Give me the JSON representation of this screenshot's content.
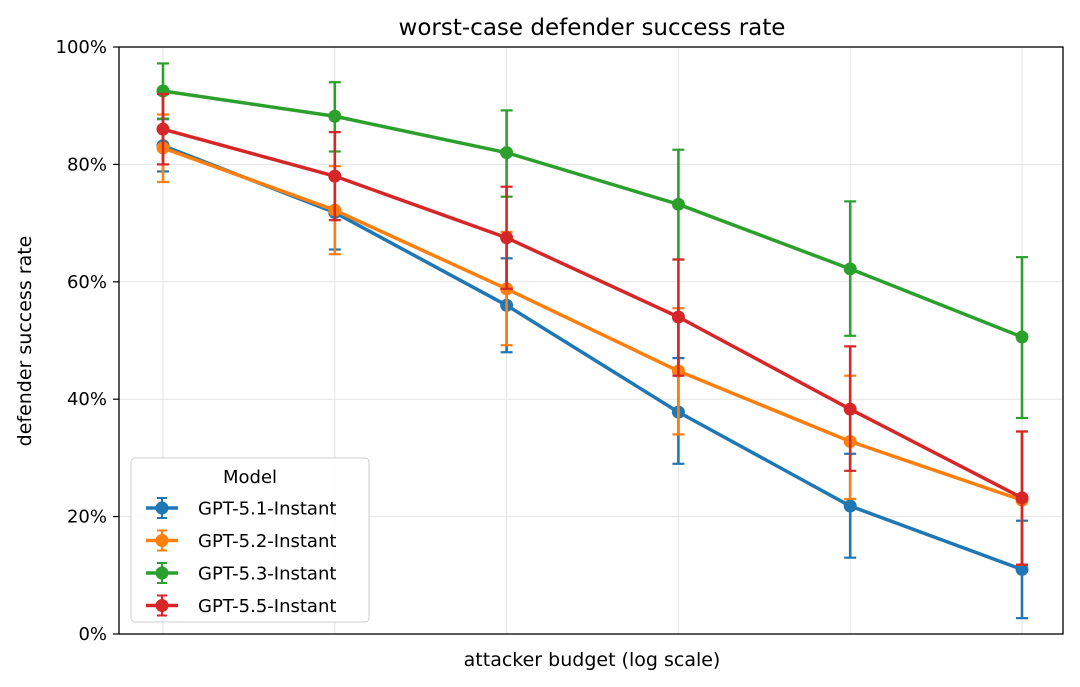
{
  "chart_data": {
    "type": "line",
    "title": "worst-case defender success rate",
    "xlabel": "attacker budget (log scale)",
    "ylabel": "defender success rate",
    "x_scale": "log",
    "x_tick_labels_shown": false,
    "ylim": [
      0,
      1
    ],
    "yticks": [
      0,
      0.2,
      0.4,
      0.6,
      0.8,
      1.0
    ],
    "ytick_labels": [
      "0%",
      "20%",
      "40%",
      "60%",
      "80%",
      "100%"
    ],
    "grid": true,
    "error_bars": true,
    "legend": {
      "title": "Model",
      "position": "lower-left"
    },
    "series": [
      {
        "name": "GPT-5.1-Instant",
        "color": "#1f77b4",
        "values": [
          0.832,
          0.718,
          0.56,
          0.378,
          0.218,
          0.11
        ],
        "err_low": [
          0.788,
          0.655,
          0.48,
          0.29,
          0.13,
          0.027
        ],
        "err_high": [
          0.877,
          0.782,
          0.64,
          0.47,
          0.307,
          0.193
        ]
      },
      {
        "name": "GPT-5.2-Instant",
        "color": "#ff7f0e",
        "values": [
          0.828,
          0.722,
          0.588,
          0.448,
          0.328,
          0.228
        ],
        "err_low": [
          0.77,
          0.647,
          0.492,
          0.34,
          0.23,
          0.118
        ],
        "err_high": [
          0.885,
          0.797,
          0.685,
          0.555,
          0.44,
          0.345
        ]
      },
      {
        "name": "GPT-5.3-Instant",
        "color": "#2ca02c",
        "values": [
          0.925,
          0.882,
          0.82,
          0.732,
          0.622,
          0.506
        ],
        "err_low": [
          0.878,
          0.822,
          0.745,
          0.638,
          0.508,
          0.368
        ],
        "err_high": [
          0.972,
          0.94,
          0.892,
          0.825,
          0.737,
          0.642
        ]
      },
      {
        "name": "GPT-5.5-Instant",
        "color": "#d62728",
        "values": [
          0.86,
          0.78,
          0.675,
          0.54,
          0.383,
          0.232
        ],
        "err_low": [
          0.8,
          0.705,
          0.588,
          0.44,
          0.278,
          0.118
        ],
        "err_high": [
          0.92,
          0.855,
          0.762,
          0.638,
          0.49,
          0.345
        ]
      }
    ]
  }
}
